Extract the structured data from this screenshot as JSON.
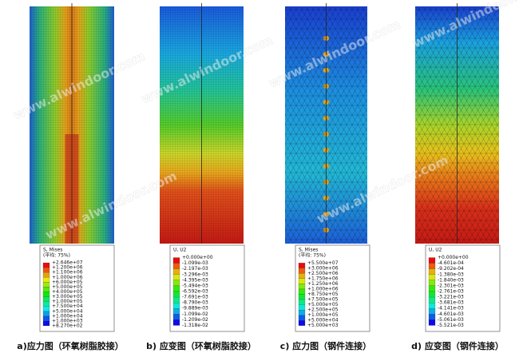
{
  "watermark": "www.alwindoor.com",
  "panels": [
    {
      "legend_title": "S, Mises",
      "legend_subtitle": "(平均: 75%)",
      "legend_values": [
        "+2.646e+07",
        "+1.200e+06",
        "+1.100e+06",
        "+1.000e+06",
        "+6.000e+05",
        "+5.000e+05",
        "+4.000e+05",
        "+3.000e+05",
        "+1.000e+05",
        "+7.500e+04",
        "+5.000e+04",
        "+1.000e+04",
        "+1.000e+03",
        "+8.270e+02"
      ],
      "caption": "a)应力图（环氧树脂胶接）"
    },
    {
      "legend_title": "U, U2",
      "legend_values": [
        "+0.000e+00",
        "-1.099e-03",
        "-2.197e-03",
        "-3.296e-03",
        "-4.395e-03",
        "-5.494e-03",
        "-6.592e-03",
        "-7.691e-03",
        "-8.790e-03",
        "-9.889e-03",
        "-1.099e-02",
        "-1.209e-02",
        "-1.318e-02"
      ],
      "caption": "b) 应变图（环氧树脂胶接）"
    },
    {
      "legend_title": "S, Mises",
      "legend_subtitle": "(平均: 75%)",
      "legend_values": [
        "+5.500e+07",
        "+3.000e+06",
        "+2.500e+06",
        "+1.750e+06",
        "+1.250e+06",
        "+1.000e+06",
        "+8.750e+05",
        "+7.500e+05",
        "+5.000e+05",
        "+2.500e+05",
        "+1.000e+05",
        "+5.000e+04",
        "+5.000e+03"
      ],
      "caption": "c) 应力图（钢件连接）"
    },
    {
      "legend_title": "U, U2",
      "legend_values": [
        "+0.000e+00",
        "-4.601e-04",
        "-9.202e-04",
        "-1.380e-03",
        "-1.840e-03",
        "-2.301e-03",
        "-2.761e-03",
        "-3.221e-03",
        "-3.681e-03",
        "-4.141e-03",
        "-4.601e-03",
        "-5.061e-03",
        "-5.521e-03"
      ],
      "caption": "d) 应变图（钢件连接）"
    }
  ]
}
